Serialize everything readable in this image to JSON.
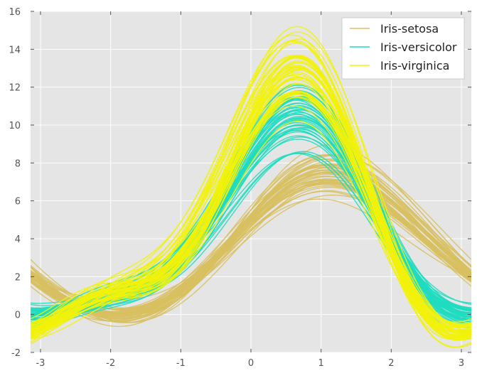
{
  "chart_data": {
    "type": "line",
    "title": "",
    "xlabel": "",
    "ylabel": "",
    "xlim": [
      -3.14159,
      3.14159
    ],
    "ylim": [
      -2,
      16
    ],
    "xticks": [
      "-3",
      "-2",
      "-1",
      "0",
      "1",
      "2",
      "3"
    ],
    "yticks": [
      "-2",
      "0",
      "2",
      "4",
      "6",
      "8",
      "10",
      "12",
      "14",
      "16"
    ],
    "grid": true,
    "legend_position": "top-right",
    "background": "#e5e5e5",
    "series": [
      {
        "name": "Iris-setosa",
        "color": "#d8c062",
        "curves": [
          [
            5.1,
            3.5,
            1.4,
            0.2
          ],
          [
            4.9,
            3.0,
            1.4,
            0.2
          ],
          [
            4.7,
            3.2,
            1.3,
            0.2
          ],
          [
            4.6,
            3.1,
            1.5,
            0.2
          ],
          [
            5.0,
            3.6,
            1.4,
            0.2
          ],
          [
            5.4,
            3.9,
            1.7,
            0.4
          ],
          [
            4.6,
            3.4,
            1.4,
            0.3
          ],
          [
            5.0,
            3.4,
            1.5,
            0.2
          ],
          [
            4.4,
            2.9,
            1.4,
            0.2
          ],
          [
            4.9,
            3.1,
            1.5,
            0.1
          ],
          [
            5.4,
            3.7,
            1.5,
            0.2
          ],
          [
            4.8,
            3.4,
            1.6,
            0.2
          ],
          [
            4.8,
            3.0,
            1.4,
            0.1
          ],
          [
            4.3,
            3.0,
            1.1,
            0.1
          ],
          [
            5.8,
            4.0,
            1.2,
            0.2
          ],
          [
            5.7,
            4.4,
            1.5,
            0.4
          ],
          [
            5.4,
            3.9,
            1.3,
            0.4
          ],
          [
            5.1,
            3.5,
            1.4,
            0.3
          ],
          [
            5.7,
            3.8,
            1.7,
            0.3
          ],
          [
            5.1,
            3.8,
            1.5,
            0.3
          ],
          [
            5.4,
            3.4,
            1.7,
            0.2
          ],
          [
            5.1,
            3.7,
            1.5,
            0.4
          ],
          [
            4.6,
            3.6,
            1.0,
            0.2
          ],
          [
            5.1,
            3.3,
            1.7,
            0.5
          ],
          [
            4.8,
            3.4,
            1.9,
            0.2
          ],
          [
            5.0,
            3.0,
            1.6,
            0.2
          ],
          [
            5.0,
            3.4,
            1.6,
            0.4
          ],
          [
            5.2,
            3.5,
            1.5,
            0.2
          ],
          [
            5.2,
            3.4,
            1.4,
            0.2
          ],
          [
            4.7,
            3.2,
            1.6,
            0.2
          ],
          [
            4.8,
            3.1,
            1.6,
            0.2
          ],
          [
            5.4,
            3.4,
            1.5,
            0.4
          ],
          [
            5.2,
            4.1,
            1.5,
            0.1
          ],
          [
            5.5,
            4.2,
            1.4,
            0.2
          ],
          [
            4.9,
            3.1,
            1.5,
            0.1
          ],
          [
            5.0,
            3.2,
            1.2,
            0.2
          ],
          [
            5.5,
            3.5,
            1.3,
            0.2
          ],
          [
            4.4,
            3.0,
            1.3,
            0.2
          ],
          [
            5.1,
            3.4,
            1.5,
            0.2
          ],
          [
            5.0,
            3.5,
            1.3,
            0.3
          ],
          [
            4.5,
            2.3,
            1.3,
            0.3
          ],
          [
            4.4,
            3.2,
            1.3,
            0.2
          ],
          [
            5.0,
            3.5,
            1.6,
            0.6
          ],
          [
            5.1,
            3.8,
            1.9,
            0.4
          ],
          [
            4.8,
            3.0,
            1.4,
            0.3
          ],
          [
            5.1,
            3.8,
            1.6,
            0.2
          ],
          [
            4.6,
            3.2,
            1.4,
            0.2
          ],
          [
            5.3,
            3.7,
            1.5,
            0.2
          ],
          [
            5.0,
            3.3,
            1.4,
            0.2
          ]
        ]
      },
      {
        "name": "Iris-versicolor",
        "color": "#1fdcc0",
        "curves": [
          [
            7.0,
            3.2,
            4.7,
            1.4
          ],
          [
            6.4,
            3.2,
            4.5,
            1.5
          ],
          [
            6.9,
            3.1,
            4.9,
            1.5
          ],
          [
            5.5,
            2.3,
            4.0,
            1.3
          ],
          [
            6.5,
            2.8,
            4.6,
            1.5
          ],
          [
            5.7,
            2.8,
            4.5,
            1.3
          ],
          [
            6.3,
            3.3,
            4.7,
            1.6
          ],
          [
            4.9,
            2.4,
            3.3,
            1.0
          ],
          [
            6.6,
            2.9,
            4.6,
            1.3
          ],
          [
            5.2,
            2.7,
            3.9,
            1.4
          ],
          [
            5.0,
            2.0,
            3.5,
            1.0
          ],
          [
            5.9,
            3.0,
            4.2,
            1.5
          ],
          [
            6.0,
            2.2,
            4.0,
            1.0
          ],
          [
            6.1,
            2.9,
            4.7,
            1.4
          ],
          [
            5.6,
            2.9,
            3.6,
            1.3
          ],
          [
            6.7,
            3.1,
            4.4,
            1.4
          ],
          [
            5.6,
            3.0,
            4.5,
            1.5
          ],
          [
            5.8,
            2.7,
            4.1,
            1.0
          ],
          [
            6.2,
            2.2,
            4.5,
            1.5
          ],
          [
            5.6,
            2.5,
            3.9,
            1.1
          ],
          [
            5.9,
            3.2,
            4.8,
            1.8
          ],
          [
            6.1,
            2.8,
            4.0,
            1.3
          ],
          [
            6.3,
            2.5,
            4.9,
            1.5
          ],
          [
            6.1,
            2.8,
            4.7,
            1.2
          ],
          [
            6.4,
            2.9,
            4.3,
            1.3
          ],
          [
            6.6,
            3.0,
            4.4,
            1.4
          ],
          [
            6.8,
            2.8,
            4.8,
            1.4
          ],
          [
            6.7,
            3.0,
            5.0,
            1.7
          ],
          [
            6.0,
            2.9,
            4.5,
            1.5
          ],
          [
            5.7,
            2.6,
            3.5,
            1.0
          ],
          [
            5.5,
            2.4,
            3.8,
            1.1
          ],
          [
            5.5,
            2.4,
            3.7,
            1.0
          ],
          [
            5.8,
            2.7,
            3.9,
            1.2
          ],
          [
            6.0,
            2.7,
            5.1,
            1.6
          ],
          [
            5.4,
            3.0,
            4.5,
            1.5
          ],
          [
            6.0,
            3.4,
            4.5,
            1.6
          ],
          [
            6.7,
            3.1,
            4.7,
            1.5
          ],
          [
            6.3,
            2.3,
            4.4,
            1.3
          ],
          [
            5.6,
            3.0,
            4.1,
            1.3
          ],
          [
            5.5,
            2.5,
            4.0,
            1.3
          ],
          [
            5.5,
            2.6,
            4.4,
            1.2
          ],
          [
            6.1,
            3.0,
            4.6,
            1.4
          ],
          [
            5.8,
            2.6,
            4.0,
            1.2
          ],
          [
            5.0,
            2.3,
            3.3,
            1.0
          ],
          [
            5.6,
            2.7,
            4.2,
            1.3
          ],
          [
            5.7,
            3.0,
            4.2,
            1.2
          ],
          [
            5.7,
            2.9,
            4.2,
            1.3
          ],
          [
            6.2,
            2.9,
            4.3,
            1.3
          ],
          [
            5.1,
            2.5,
            3.0,
            1.1
          ],
          [
            5.7,
            2.8,
            4.1,
            1.3
          ]
        ]
      },
      {
        "name": "Iris-virginica",
        "color": "#f2f20a",
        "curves": [
          [
            6.3,
            3.3,
            6.0,
            2.5
          ],
          [
            5.8,
            2.7,
            5.1,
            1.9
          ],
          [
            7.1,
            3.0,
            5.9,
            2.1
          ],
          [
            6.3,
            2.9,
            5.6,
            1.8
          ],
          [
            6.5,
            3.0,
            5.8,
            2.2
          ],
          [
            7.6,
            3.0,
            6.6,
            2.1
          ],
          [
            4.9,
            2.5,
            4.5,
            1.7
          ],
          [
            7.3,
            2.9,
            6.3,
            1.8
          ],
          [
            6.7,
            2.5,
            5.8,
            1.8
          ],
          [
            7.2,
            3.6,
            6.1,
            2.5
          ],
          [
            6.5,
            3.2,
            5.1,
            2.0
          ],
          [
            6.4,
            2.7,
            5.3,
            1.9
          ],
          [
            6.8,
            3.0,
            5.5,
            2.1
          ],
          [
            5.7,
            2.5,
            5.0,
            2.0
          ],
          [
            5.8,
            2.8,
            5.1,
            2.4
          ],
          [
            6.4,
            3.2,
            5.3,
            2.3
          ],
          [
            6.5,
            3.0,
            5.5,
            1.8
          ],
          [
            7.7,
            3.8,
            6.7,
            2.2
          ],
          [
            7.7,
            2.6,
            6.9,
            2.3
          ],
          [
            6.0,
            2.2,
            5.0,
            1.5
          ],
          [
            6.9,
            3.2,
            5.7,
            2.3
          ],
          [
            5.6,
            2.8,
            4.9,
            2.0
          ],
          [
            7.7,
            2.8,
            6.7,
            2.0
          ],
          [
            6.3,
            2.7,
            4.9,
            1.8
          ],
          [
            6.7,
            3.3,
            5.7,
            2.1
          ],
          [
            7.2,
            3.2,
            6.0,
            1.8
          ],
          [
            6.2,
            2.8,
            4.8,
            1.8
          ],
          [
            6.1,
            3.0,
            4.9,
            1.8
          ],
          [
            6.4,
            2.8,
            5.6,
            2.1
          ],
          [
            7.2,
            3.0,
            5.8,
            1.6
          ],
          [
            7.4,
            2.8,
            6.1,
            1.9
          ],
          [
            7.9,
            3.8,
            6.4,
            2.0
          ],
          [
            6.4,
            2.8,
            5.6,
            2.2
          ],
          [
            6.3,
            2.8,
            5.1,
            1.5
          ],
          [
            6.1,
            2.6,
            5.6,
            1.4
          ],
          [
            7.7,
            3.0,
            6.1,
            2.3
          ],
          [
            6.3,
            3.4,
            5.6,
            2.4
          ],
          [
            6.4,
            3.1,
            5.5,
            1.8
          ],
          [
            6.0,
            3.0,
            4.8,
            1.8
          ],
          [
            6.9,
            3.1,
            5.4,
            2.1
          ],
          [
            6.7,
            3.1,
            5.6,
            2.4
          ],
          [
            6.9,
            3.1,
            5.1,
            2.3
          ],
          [
            5.8,
            2.7,
            5.1,
            1.9
          ],
          [
            6.8,
            3.2,
            5.9,
            2.3
          ],
          [
            6.7,
            3.3,
            5.7,
            2.5
          ],
          [
            6.7,
            3.0,
            5.2,
            2.3
          ],
          [
            6.3,
            2.5,
            5.0,
            1.9
          ],
          [
            6.5,
            3.0,
            5.2,
            2.0
          ],
          [
            6.2,
            3.4,
            5.4,
            2.3
          ],
          [
            5.9,
            3.0,
            5.1,
            1.8
          ]
        ]
      }
    ]
  }
}
